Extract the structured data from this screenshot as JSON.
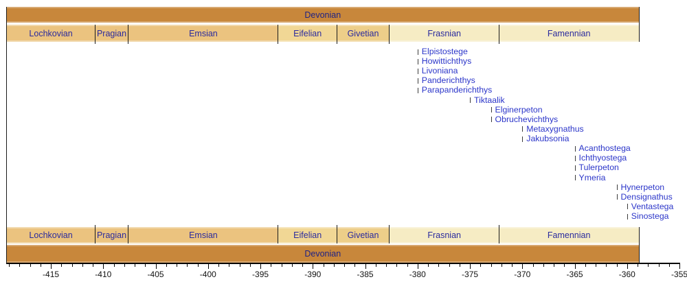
{
  "chart_data": {
    "type": "timeline",
    "title": "",
    "period_bar": {
      "label": "Devonian",
      "from": -419.2,
      "to": -358.9,
      "color": "#C8873B"
    },
    "stages": [
      {
        "name": "Lochkovian",
        "from": -419.2,
        "to": -410.8,
        "color": "#EBC37F"
      },
      {
        "name": "Pragian",
        "from": -410.8,
        "to": -407.6,
        "color": "#EBC37F"
      },
      {
        "name": "Emsian",
        "from": -407.6,
        "to": -393.3,
        "color": "#EBC37F"
      },
      {
        "name": "Eifelian",
        "from": -393.3,
        "to": -387.7,
        "color": "#F1D795"
      },
      {
        "name": "Givetian",
        "from": -387.7,
        "to": -382.7,
        "color": "#EDCE89"
      },
      {
        "name": "Frasnian",
        "from": -382.7,
        "to": -372.2,
        "color": "#F6ECC4"
      },
      {
        "name": "Famennian",
        "from": -372.2,
        "to": -358.9,
        "color": "#F6ECC4"
      }
    ],
    "taxa": [
      {
        "name": "Elpistostege",
        "time": -380
      },
      {
        "name": "Howittichthys",
        "time": -380
      },
      {
        "name": "Livoniana",
        "time": -380
      },
      {
        "name": "Panderichthys",
        "time": -380
      },
      {
        "name": "Parapanderichthys",
        "time": -380
      },
      {
        "name": "Tiktaalik",
        "time": -375
      },
      {
        "name": "Elginerpeton",
        "time": -373
      },
      {
        "name": "Obruchevichthys",
        "time": -373
      },
      {
        "name": "Metaxygnathus",
        "time": -370
      },
      {
        "name": "Jakubsonia",
        "time": -370
      },
      {
        "name": "Acanthostega",
        "time": -365
      },
      {
        "name": "Ichthyostega",
        "time": -365
      },
      {
        "name": "Tulerpeton",
        "time": -365
      },
      {
        "name": "Ymeria",
        "time": -365
      },
      {
        "name": "Hynerpeton",
        "time": -361
      },
      {
        "name": "Densignathus",
        "time": -361
      },
      {
        "name": "Ventastega",
        "time": -360
      },
      {
        "name": "Sinostega",
        "time": -360
      }
    ],
    "axis": {
      "min": -419.2,
      "max": -355,
      "minor_step": 1,
      "major_step": 5,
      "major_ticks": [
        -415,
        -410,
        -405,
        -400,
        -395,
        -390,
        -385,
        -380,
        -375,
        -370,
        -365,
        -360,
        -355
      ],
      "major_tick_labels": [
        "-415",
        "-410",
        "-405",
        "-400",
        "-395",
        "-390",
        "-385",
        "-380",
        "-375",
        "-370",
        "-365",
        "-360",
        "-355"
      ]
    }
  },
  "colors": {
    "period_label": "#1F2285",
    "stage_label": "#2A2A9E",
    "taxon_label": "#2B35C9",
    "tick_mark": "#3A3A3A",
    "boundary_line": "#1A1A1A",
    "axis_line": "#000000",
    "axis_label": "#111111"
  }
}
